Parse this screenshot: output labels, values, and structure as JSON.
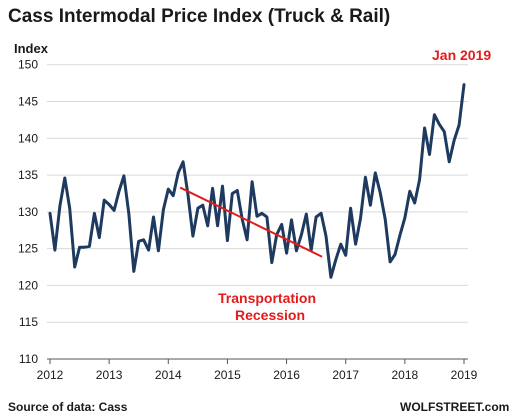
{
  "chart_data": {
    "type": "line",
    "title": "Cass Intermodal Price Index (Truck & Rail)",
    "ylabel": "Index",
    "xlabel": "",
    "ylim": [
      110,
      152
    ],
    "xlim": [
      2012,
      2019.1
    ],
    "yticks": [
      110,
      115,
      120,
      125,
      130,
      135,
      140,
      145,
      150
    ],
    "xticks": [
      2012,
      2013,
      2014,
      2015,
      2016,
      2017,
      2018,
      2019
    ],
    "grid": "horizontal",
    "series": [
      {
        "color": "#1f3a5f",
        "x": [
          2012.0,
          2012.083,
          2012.167,
          2012.25,
          2012.333,
          2012.417,
          2012.5,
          2012.583,
          2012.667,
          2012.75,
          2012.833,
          2012.917,
          2013.0,
          2013.083,
          2013.167,
          2013.25,
          2013.333,
          2013.417,
          2013.5,
          2013.583,
          2013.667,
          2013.75,
          2013.833,
          2013.917,
          2014.0,
          2014.083,
          2014.167,
          2014.25,
          2014.333,
          2014.417,
          2014.5,
          2014.583,
          2014.667,
          2014.75,
          2014.833,
          2014.917,
          2015.0,
          2015.083,
          2015.167,
          2015.25,
          2015.333,
          2015.417,
          2015.5,
          2015.583,
          2015.667,
          2015.75,
          2015.833,
          2015.917,
          2016.0,
          2016.083,
          2016.167,
          2016.25,
          2016.333,
          2016.417,
          2016.5,
          2016.583,
          2016.667,
          2016.75,
          2016.833,
          2016.917,
          2017.0,
          2017.083,
          2017.167,
          2017.25,
          2017.333,
          2017.417,
          2017.5,
          2017.583,
          2017.667,
          2017.75,
          2017.833,
          2017.917,
          2018.0,
          2018.083,
          2018.167,
          2018.25,
          2018.333,
          2018.417,
          2018.5,
          2018.583,
          2018.667,
          2018.75,
          2018.833,
          2018.917,
          2019.0
        ],
        "values": [
          129.8,
          124.8,
          130.8,
          134.6,
          130.5,
          122.5,
          125.2,
          125.2,
          125.3,
          129.8,
          126.5,
          131.6,
          131.0,
          130.2,
          132.8,
          134.9,
          129.8,
          121.9,
          126.0,
          126.2,
          124.8,
          129.3,
          124.7,
          130.3,
          133.1,
          132.2,
          135.3,
          136.8,
          132.3,
          126.7,
          130.5,
          130.9,
          128.1,
          133.2,
          128.1,
          133.5,
          126.1,
          132.5,
          132.9,
          129.0,
          126.2,
          134.1,
          129.4,
          129.8,
          129.3,
          123.1,
          126.9,
          128.3,
          124.4,
          128.9,
          124.7,
          126.9,
          129.7,
          124.8,
          129.3,
          129.8,
          126.7,
          121.1,
          123.5,
          125.6,
          124.1,
          130.5,
          125.6,
          129.1,
          134.7,
          130.9,
          135.3,
          132.6,
          129.0,
          123.2,
          124.2,
          126.8,
          129.2,
          132.8,
          131.2,
          134.4,
          141.4,
          137.8,
          143.2,
          141.9,
          140.9,
          136.8,
          139.7,
          141.8,
          147.3
        ]
      }
    ],
    "annotations": [
      {
        "text": "Jan 2019",
        "color": "#e31b1b"
      },
      {
        "text_lines": [
          "Transportation",
          "Recession"
        ],
        "color": "#e31b1b"
      }
    ],
    "trendline": {
      "color": "#e31b1b",
      "from": {
        "x": 2014.2,
        "y": 133.3
      },
      "to": {
        "x": 2016.6,
        "y": 123.9
      }
    },
    "source": "Source of data: Cass",
    "credit": "WOLFSTREET.com"
  }
}
